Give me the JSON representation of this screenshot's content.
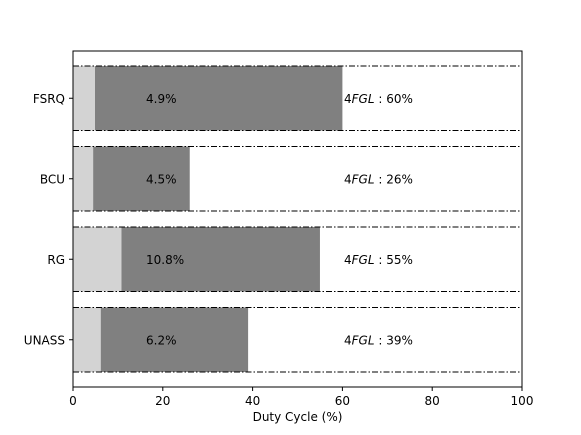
{
  "chart_data": {
    "type": "bar",
    "orientation": "horizontal",
    "stacked": true,
    "title": "",
    "xlabel": "Duty Cycle (%)",
    "ylabel": "",
    "xlim": [
      0,
      100
    ],
    "xticks": [
      0,
      20,
      40,
      60,
      80,
      100
    ],
    "grid": false,
    "legend": "none",
    "categories": [
      "FSRQ",
      "BCU",
      "RG",
      "UNASS"
    ],
    "series": [
      {
        "color": "#d3d3d3",
        "values": [
          4.9,
          4.5,
          10.8,
          6.2
        ]
      },
      {
        "color": "#808080",
        "values": [
          60,
          26,
          55,
          39
        ]
      }
    ],
    "inner_labels": [
      "4.9%",
      "4.5%",
      "10.8%",
      "6.2%"
    ],
    "fgl_prefix": "4",
    "fgl_italic": "FGL",
    "fgl_sep": " :  ",
    "fgl_values": [
      "60%",
      "26%",
      "55%",
      "39%"
    ],
    "reference_lines": "dash-dot, top and bottom of each category band"
  }
}
